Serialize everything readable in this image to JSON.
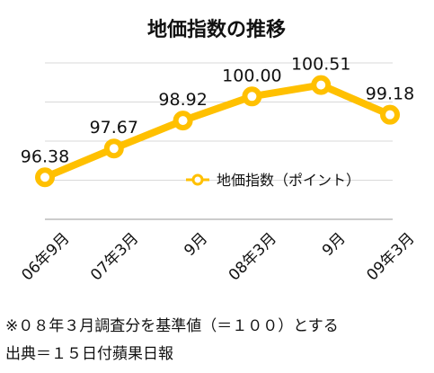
{
  "chart_data": {
    "type": "line",
    "title": "地価指数の推移",
    "categories": [
      "06年9月",
      "07年3月",
      "9月",
      "08年3月",
      "9月",
      "09年3月"
    ],
    "series": [
      {
        "name": "地価指数（ポイント）",
        "values": [
          96.38,
          97.67,
          98.92,
          100.0,
          100.51,
          99.18
        ],
        "color": "#FFC000"
      }
    ],
    "value_labels": [
      "96.38",
      "97.67",
      "98.92",
      "100.00",
      "100.51",
      "99.18"
    ],
    "ylim": [
      94.5,
      101.5
    ],
    "grid": true,
    "legend_position": "inside-right"
  },
  "notes": {
    "line1": "※０８年３月調査分を基準値（＝１００）とする",
    "line2": "出典＝１５日付蘋果日報"
  }
}
